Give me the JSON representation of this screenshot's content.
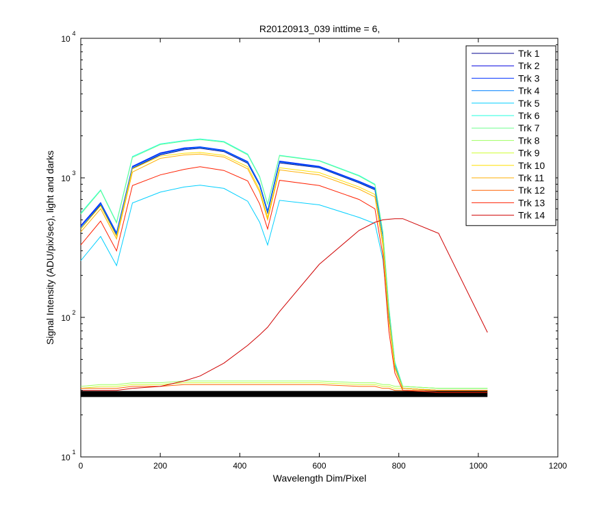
{
  "chart_data": {
    "type": "line",
    "title": "R20120913_039 inttime = 6,",
    "xlabel": "Wavelength Dim/Pixel",
    "ylabel": "Signal Intensity (ADU/pix/sec), light and darks",
    "xlim": [
      0,
      1200
    ],
    "ylim": [
      10,
      10000
    ],
    "y_scale": "log",
    "grid": false,
    "legend_position": "top-right",
    "x_ticks": [
      "0",
      "200",
      "400",
      "600",
      "800",
      "1000",
      "1200"
    ],
    "y_ticks": [
      {
        "base": "10",
        "exp": "1"
      },
      {
        "base": "10",
        "exp": "2"
      },
      {
        "base": "10",
        "exp": "3"
      },
      {
        "base": "10",
        "exp": "4"
      }
    ],
    "x": [
      0,
      50,
      90,
      130,
      200,
      260,
      300,
      360,
      420,
      450,
      470,
      500,
      600,
      700,
      740,
      760,
      775,
      790,
      810,
      900,
      1023
    ],
    "series": [
      {
        "name": "Trk 1",
        "color": "#00008f",
        "values": [
          430,
          640,
          390,
          1170,
          1460,
          1590,
          1630,
          1540,
          1270,
          880,
          560,
          1280,
          1180,
          920,
          820,
          380,
          110,
          46,
          31,
          30,
          30
        ]
      },
      {
        "name": "Trk 2",
        "color": "#0000df",
        "values": [
          450,
          660,
          400,
          1200,
          1500,
          1630,
          1660,
          1570,
          1300,
          900,
          575,
          1310,
          1200,
          940,
          840,
          390,
          115,
          47,
          31,
          30,
          30
        ]
      },
      {
        "name": "Trk 3",
        "color": "#0030ff",
        "values": [
          455,
          665,
          405,
          1210,
          1510,
          1640,
          1670,
          1580,
          1310,
          905,
          580,
          1320,
          1210,
          945,
          845,
          392,
          116,
          47,
          31,
          30,
          30
        ]
      },
      {
        "name": "Trk 4",
        "color": "#0080ff",
        "values": [
          440,
          650,
          395,
          1190,
          1480,
          1610,
          1650,
          1560,
          1290,
          890,
          570,
          1300,
          1190,
          930,
          830,
          385,
          112,
          46,
          31,
          30,
          30
        ]
      },
      {
        "name": "Trk 5",
        "color": "#00cfff",
        "values": [
          255,
          380,
          235,
          660,
          790,
          860,
          885,
          840,
          680,
          480,
          330,
          690,
          640,
          520,
          470,
          260,
          95,
          44,
          31,
          30,
          30
        ]
      },
      {
        "name": "Trk 6",
        "color": "#20ffdf",
        "values": [
          560,
          820,
          480,
          1420,
          1750,
          1850,
          1900,
          1820,
          1480,
          1020,
          650,
          1450,
          1330,
          1040,
          900,
          410,
          120,
          48,
          32,
          31,
          31
        ]
      },
      {
        "name": "Trk 7",
        "color": "#70ff8f",
        "values": [
          550,
          810,
          475,
          1400,
          1730,
          1830,
          1880,
          1800,
          1460,
          1010,
          645,
          1440,
          1320,
          1030,
          890,
          405,
          118,
          47,
          32,
          31,
          31
        ]
      },
      {
        "name": "Trk 8",
        "color": "#9fff60",
        "values": [
          32,
          33,
          33,
          34,
          34,
          35,
          35,
          35,
          35,
          35,
          35,
          35,
          35,
          34,
          34,
          33,
          33,
          32,
          32,
          31,
          31
        ]
      },
      {
        "name": "Trk 9",
        "color": "#cfff30",
        "values": [
          31,
          32,
          32,
          33,
          33,
          34,
          34,
          34,
          34,
          34,
          34,
          34,
          34,
          33,
          33,
          32,
          32,
          31,
          31,
          30,
          30
        ]
      },
      {
        "name": "Trk 10",
        "color": "#ffdf00",
        "values": [
          430,
          630,
          380,
          1160,
          1430,
          1500,
          1520,
          1450,
          1200,
          820,
          520,
          1180,
          1090,
          860,
          760,
          350,
          100,
          44,
          31,
          30,
          30
        ]
      },
      {
        "name": "Trk 11",
        "color": "#ffaf00",
        "values": [
          410,
          600,
          365,
          1100,
          1380,
          1460,
          1480,
          1410,
          1160,
          790,
          500,
          1140,
          1050,
          830,
          730,
          330,
          95,
          43,
          31,
          30,
          30
        ]
      },
      {
        "name": "Trk 12",
        "color": "#ff6000",
        "values": [
          31,
          31,
          31,
          32,
          32,
          33,
          33,
          33,
          33,
          33,
          33,
          33,
          33,
          32,
          32,
          31,
          31,
          30,
          30,
          30,
          30
        ]
      },
      {
        "name": "Trk 13",
        "color": "#ff2000",
        "values": [
          330,
          490,
          300,
          880,
          1050,
          1150,
          1200,
          1130,
          950,
          650,
          430,
          960,
          880,
          700,
          600,
          280,
          80,
          40,
          30,
          29,
          29
        ]
      },
      {
        "name": "Trk 14",
        "color": "#cf0000",
        "values": [
          30,
          30,
          30,
          31,
          32,
          35,
          38,
          47,
          63,
          75,
          85,
          110,
          240,
          420,
          480,
          500,
          505,
          510,
          510,
          400,
          78
        ]
      }
    ],
    "dark_frames": {
      "color": "#000000",
      "value": 28
    }
  }
}
